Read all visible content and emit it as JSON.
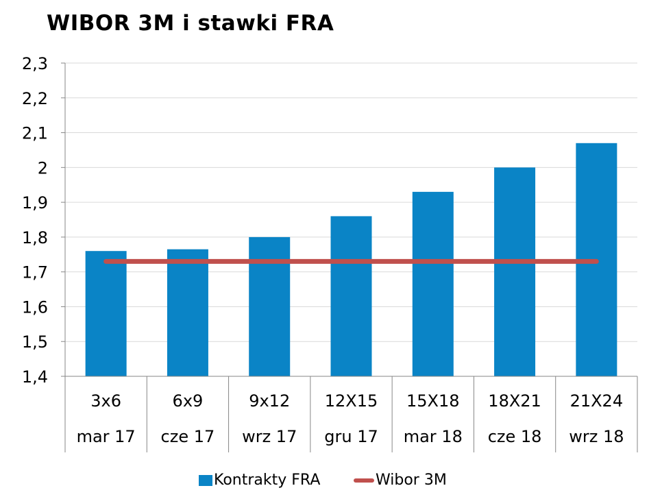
{
  "chart_data": {
    "type": "bar",
    "title": "WIBOR 3M i stawki FRA",
    "categories": [
      "3x6",
      "6x9",
      "9x12",
      "12X15",
      "15X18",
      "18X21",
      "21X24"
    ],
    "sub_categories": [
      "mar 17",
      "cze 17",
      "wrz 17",
      "gru 17",
      "mar 18",
      "cze 18",
      "wrz 18"
    ],
    "series": [
      {
        "name": "Kontrakty FRA",
        "type": "bar",
        "color": "#0A84C6",
        "values": [
          1.76,
          1.765,
          1.8,
          1.86,
          1.93,
          2.0,
          2.07
        ]
      },
      {
        "name": "Wibor 3M",
        "type": "line",
        "color": "#C0504D",
        "values": [
          1.73,
          1.73,
          1.73,
          1.73,
          1.73,
          1.73,
          1.73
        ]
      }
    ],
    "ylim": [
      1.4,
      2.3
    ],
    "yticks": [
      "1,4",
      "1,5",
      "1,6",
      "1,7",
      "1,8",
      "1,9",
      "2",
      "2,1",
      "2,2",
      "2,3"
    ],
    "xlabel": "",
    "ylabel": "",
    "grid": true,
    "legend_position": "bottom"
  }
}
